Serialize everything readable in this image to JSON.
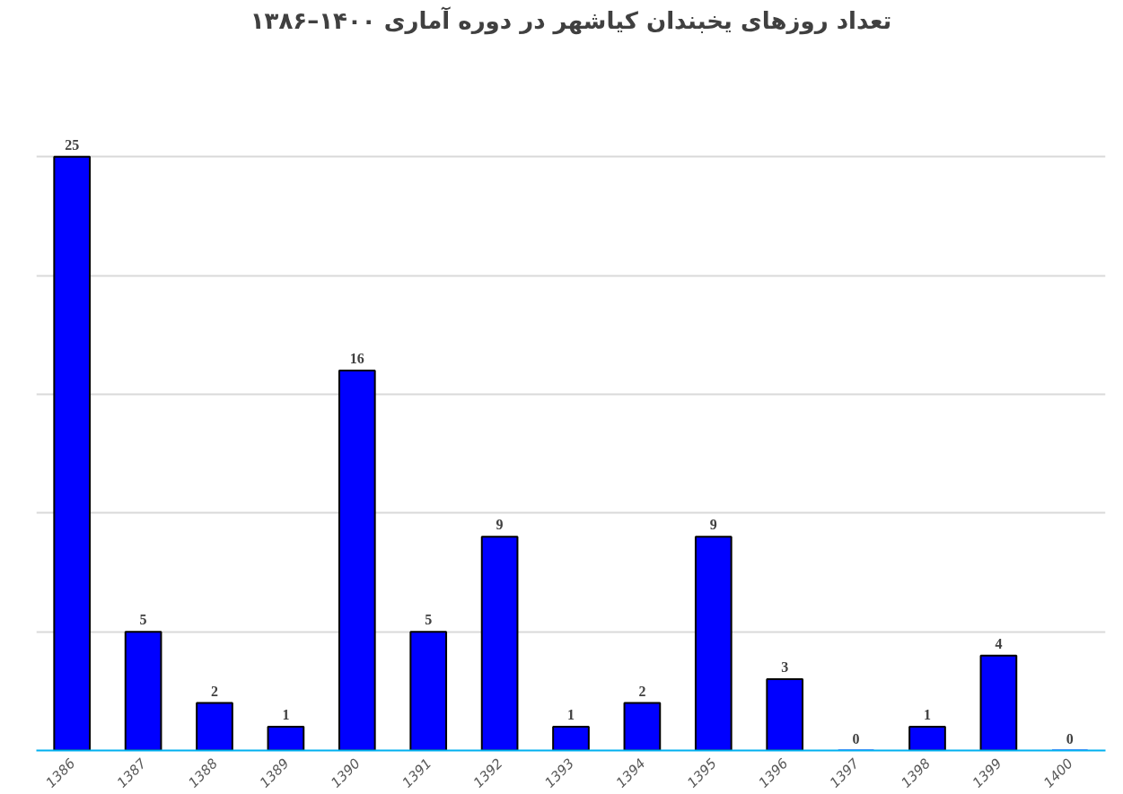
{
  "chart_data": {
    "type": "bar",
    "title": "تعداد روزهای یخبندان کیاشهر در دوره آماری ۱۴۰۰–۱۳۸۶",
    "categories": [
      "1386",
      "1387",
      "1388",
      "1389",
      "1390",
      "1391",
      "1392",
      "1393",
      "1394",
      "1395",
      "1396",
      "1397",
      "1398",
      "1399",
      "1400"
    ],
    "values": [
      25,
      5,
      2,
      1,
      16,
      5,
      9,
      1,
      2,
      9,
      3,
      0,
      1,
      4,
      0
    ],
    "color": "#0000ff",
    "grid": "y",
    "tick_labels": "x",
    "data_labels": true
  }
}
